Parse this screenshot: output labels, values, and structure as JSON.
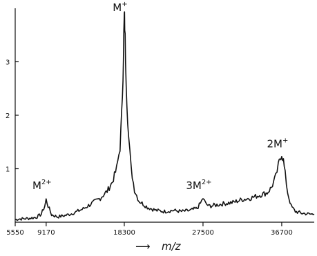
{
  "chart_data": {
    "type": "line",
    "title": "",
    "xlabel": "m/z",
    "ylabel": "",
    "xlim": [
      5550,
      40500
    ],
    "ylim": [
      0,
      4.0
    ],
    "x_ticks": [
      5550,
      9170,
      18300,
      27500,
      36700
    ],
    "x_tick_labels": [
      "5550",
      "9170",
      "18300",
      "27500",
      "36700"
    ],
    "y_ticks": [
      1,
      2,
      3
    ],
    "y_tick_labels": [
      "1",
      "2",
      "3"
    ],
    "series": [
      {
        "x": [
          5550,
          6000,
          7000,
          8000,
          8600,
          9000,
          9170,
          9400,
          9800,
          10500,
          11500,
          12500,
          13500,
          14500,
          15500,
          16300,
          16900,
          17400,
          17800,
          18000,
          18150,
          18250,
          18300,
          18350,
          18450,
          18600,
          18800,
          19100,
          19500,
          20000,
          21000,
          22000,
          23000,
          24000,
          25000,
          26000,
          26800,
          27200,
          27500,
          27800,
          28200,
          29000,
          30000,
          31000,
          32000,
          33000,
          34000,
          35000,
          35500,
          36000,
          36300,
          36500,
          36700,
          36900,
          37100,
          37400,
          37800,
          38300,
          39000,
          40000,
          40500
        ],
        "y": [
          0.05,
          0.06,
          0.07,
          0.09,
          0.15,
          0.3,
          0.42,
          0.3,
          0.14,
          0.1,
          0.13,
          0.18,
          0.25,
          0.35,
          0.45,
          0.58,
          0.75,
          1.0,
          1.4,
          2.0,
          2.8,
          3.5,
          3.85,
          3.7,
          3.1,
          2.3,
          1.6,
          1.0,
          0.6,
          0.4,
          0.28,
          0.22,
          0.2,
          0.22,
          0.2,
          0.22,
          0.26,
          0.35,
          0.45,
          0.35,
          0.3,
          0.32,
          0.35,
          0.37,
          0.42,
          0.45,
          0.5,
          0.55,
          0.65,
          0.85,
          1.05,
          1.2,
          1.28,
          1.15,
          0.9,
          0.55,
          0.3,
          0.2,
          0.17,
          0.15,
          0.15
        ]
      }
    ],
    "annotations": [
      {
        "base": "M",
        "sup": "2+",
        "x": 9170,
        "y": 0.62
      },
      {
        "base": "M",
        "sup": "+",
        "x": 18300,
        "y": 3.95
      },
      {
        "base": "3M",
        "sup": "2+",
        "x": 27500,
        "y": 0.62
      },
      {
        "base": "2M",
        "sup": "+",
        "x": 36700,
        "y": 1.4
      }
    ]
  },
  "xaxis_arrow": "⟶",
  "xaxis_text": "m/z"
}
